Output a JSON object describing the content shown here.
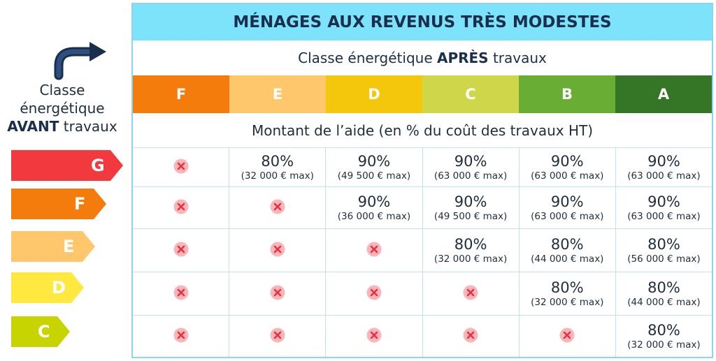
{
  "header": {
    "title": "MÉNAGES AUX REVENUS TRÈS MODESTES"
  },
  "subheader": {
    "prefix": "Classe énergétique ",
    "bold": "APRÈS",
    "suffix": " travaux"
  },
  "after_classes": [
    {
      "label": "F",
      "color": "#f47c0c"
    },
    {
      "label": "E",
      "color": "#ffc76b"
    },
    {
      "label": "D",
      "color": "#f4c60c"
    },
    {
      "label": "C",
      "color": "#cfd64a"
    },
    {
      "label": "B",
      "color": "#6aad35"
    },
    {
      "label": "A",
      "color": "#347626"
    }
  ],
  "montant_label": "Montant de l’aide (en % du coût des travaux HT)",
  "avant_label": {
    "line1": "Classe",
    "line2": "énergétique",
    "bold": "AVANT",
    "suffix": " travaux"
  },
  "before_classes": [
    {
      "label": "G",
      "color": "#f23a3e"
    },
    {
      "label": "F",
      "color": "#f47c0c"
    },
    {
      "label": "E",
      "color": "#ffc76b"
    },
    {
      "label": "D",
      "color": "#ffe840"
    },
    {
      "label": "C",
      "color": "#c8d400"
    }
  ],
  "icons": {
    "arrow": "curved-arrow-icon",
    "not_eligible": "x-circle-icon"
  },
  "rows": [
    [
      null,
      {
        "pct": "80%",
        "max": "(32 000 € max)"
      },
      {
        "pct": "90%",
        "max": "(49 500 € max)"
      },
      {
        "pct": "90%",
        "max": "(63 000 € max)"
      },
      {
        "pct": "90%",
        "max": "(63 000 € max)"
      },
      {
        "pct": "90%",
        "max": "(63 000 € max)"
      }
    ],
    [
      null,
      null,
      {
        "pct": "90%",
        "max": "(36 000 € max)"
      },
      {
        "pct": "90%",
        "max": "(49 500 € max)"
      },
      {
        "pct": "90%",
        "max": "(63 000 € max)"
      },
      {
        "pct": "90%",
        "max": "(63 000 € max)"
      }
    ],
    [
      null,
      null,
      null,
      {
        "pct": "80%",
        "max": "(32 000 € max)"
      },
      {
        "pct": "80%",
        "max": "(44 000 € max)"
      },
      {
        "pct": "80%",
        "max": "(56 000 € max)"
      }
    ],
    [
      null,
      null,
      null,
      null,
      {
        "pct": "80%",
        "max": "(32 000 € max)"
      },
      {
        "pct": "80%",
        "max": "(44 000 € max)"
      }
    ],
    [
      null,
      null,
      null,
      null,
      null,
      {
        "pct": "80%",
        "max": "(32 000 € max)"
      }
    ]
  ]
}
